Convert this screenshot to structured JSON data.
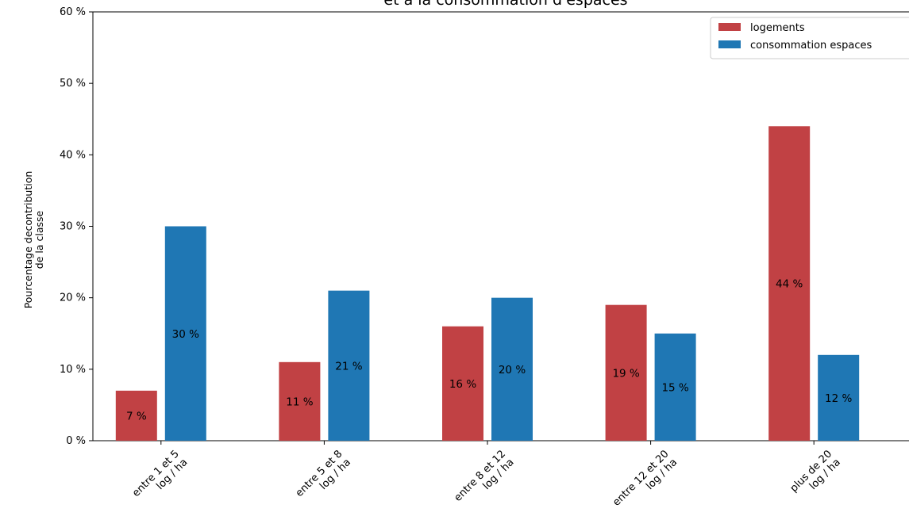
{
  "chart_data": {
    "type": "bar",
    "title": "et à la consommation d'espaces",
    "xlabel": "",
    "ylabel_lines": [
      "Pourcentage decontribution",
      "de la classe"
    ],
    "ylim": [
      0,
      60
    ],
    "yticks": [
      0,
      10,
      20,
      30,
      40,
      50,
      60
    ],
    "ytick_suffix": " %",
    "categories": [
      [
        "entre 1 et 5",
        "log / ha"
      ],
      [
        "entre 5 et 8",
        "log / ha"
      ],
      [
        "entre 8 et 12",
        "log / ha"
      ],
      [
        "entre 12 et 20",
        "log / ha"
      ],
      [
        "plus de 20",
        "log / ha"
      ]
    ],
    "series": [
      {
        "name": "logements",
        "color": "#c14144",
        "values": [
          7,
          11,
          16,
          19,
          44
        ],
        "labels": [
          "7 %",
          "11 %",
          "16 %",
          "19 %",
          "44 %"
        ]
      },
      {
        "name": "consommation espaces",
        "color": "#1f77b4",
        "values": [
          30,
          21,
          20,
          15,
          12
        ],
        "labels": [
          "30 %",
          "21 %",
          "20 %",
          "15 %",
          "12 %"
        ]
      }
    ],
    "legend": "top-right",
    "grid": false
  }
}
